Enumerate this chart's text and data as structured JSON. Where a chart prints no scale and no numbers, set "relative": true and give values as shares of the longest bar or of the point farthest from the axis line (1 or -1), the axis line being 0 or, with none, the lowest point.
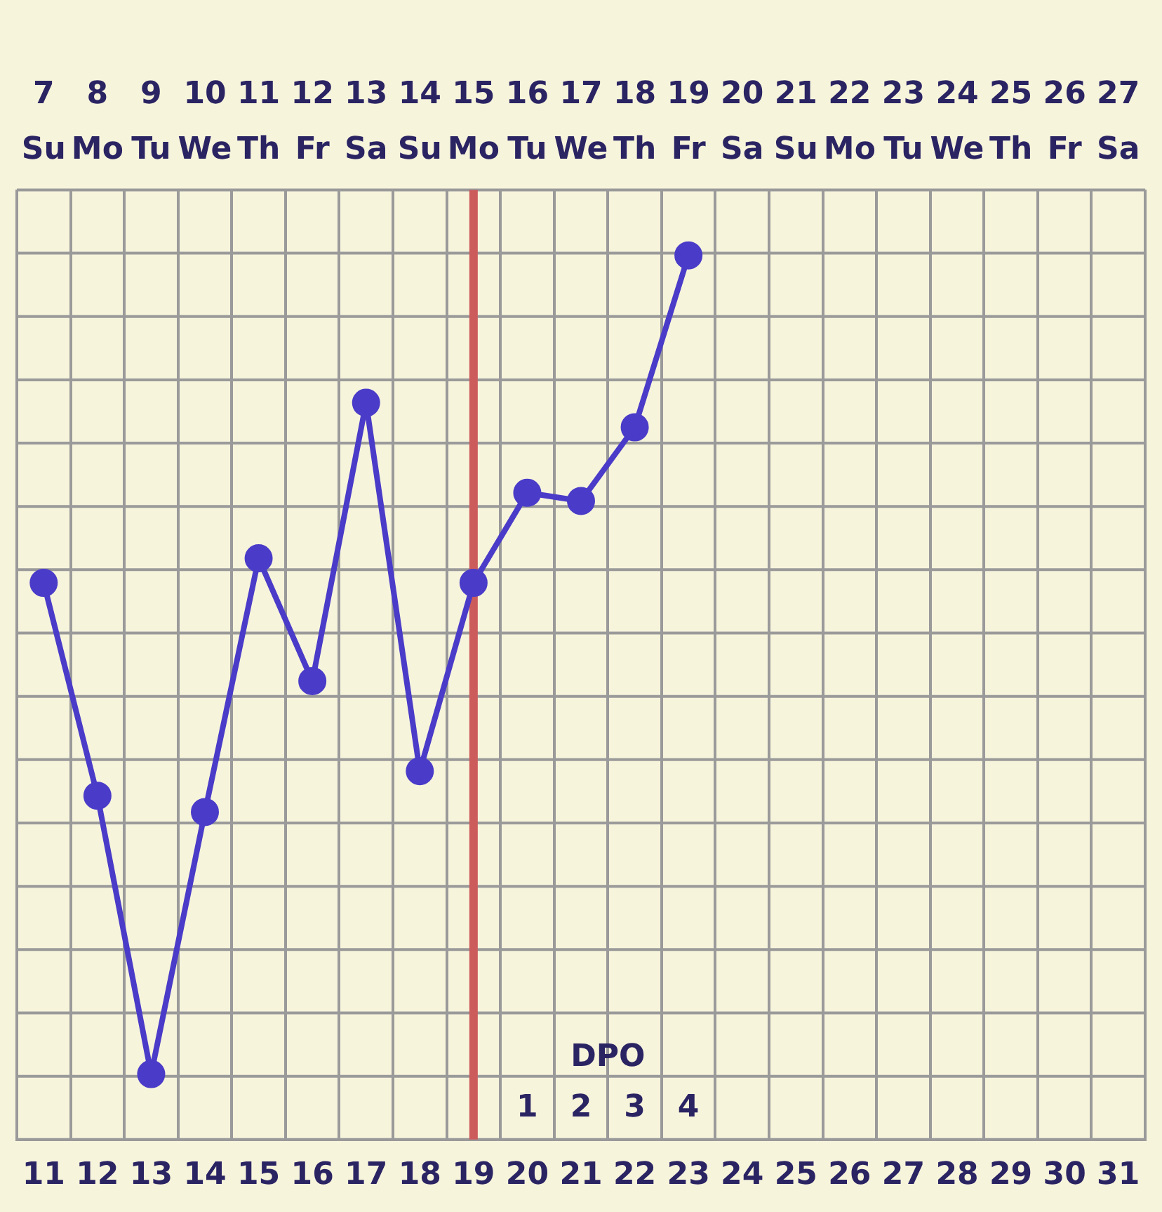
{
  "chart_data": {
    "type": "line",
    "relative": true,
    "categories": [
      "7\nSu\n11",
      "8\nMo\n12",
      "9\nTu\n13",
      "10\nWe\n14",
      "11\nTh\n15",
      "12\nFr\n16",
      "13\nSa\n17",
      "14\nSu\n18",
      "15\nMo\n19",
      "16\nTu\n20",
      "17\nWe\n21",
      "18\nTh\n22",
      "19\nFr\n23",
      "20\nSa\n24",
      "21\nSu\n25",
      "22\nMo\n26",
      "23\nTu\n27",
      "24\nWe\n28",
      "25\nTh\n29",
      "26\nFr\n30",
      "27\nSa\n31"
    ],
    "series": [
      {
        "color": "#4a3cc8",
        "values": [
          0.6,
          0.34,
          0,
          0.32,
          0.63,
          0.48,
          0.82,
          0.37,
          0.6,
          0.71,
          0.7,
          0.79,
          1,
          null,
          null,
          null,
          null,
          null,
          null,
          null,
          null
        ]
      }
    ],
    "marker": "circle",
    "line_style": "solid",
    "grid": true,
    "legend": false,
    "ref_lines": [
      {
        "axis": "x",
        "value": "15\nMo\n19",
        "color": "#cc5c5c"
      }
    ],
    "annotations": [
      "DPO",
      "1",
      "2",
      "3",
      "4"
    ]
  }
}
